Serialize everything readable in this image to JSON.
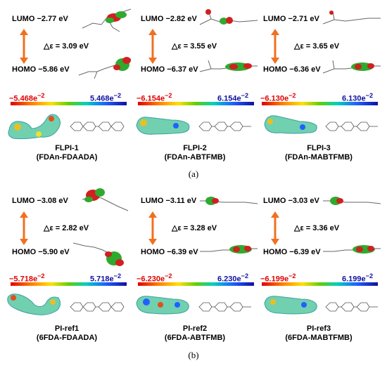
{
  "panels": [
    {
      "tag": "(a)",
      "items": [
        {
          "lumo": "LUMO −2.77 eV",
          "homo": "HOMO −5.86 eV",
          "gap": "△ε = 3.09 eV",
          "cb_min": "−5.468e",
          "cb_max": "5.468e",
          "exp": "−2",
          "name1": "FLPI-1",
          "name2": "(FDAn-FDAADA)"
        },
        {
          "lumo": "LUMO −2.82 eV",
          "homo": "HOMO −6.37 eV",
          "gap": "△ε = 3.55 eV",
          "cb_min": "−6.154e",
          "cb_max": "6.154e",
          "exp": "−2",
          "name1": "FLPI-2",
          "name2": "(FDAn-ABTFMB)"
        },
        {
          "lumo": "LUMO −2.71 eV",
          "homo": "HOMO −6.36 eV",
          "gap": "△ε = 3.65 eV",
          "cb_min": "−6.130e",
          "cb_max": "6.130e",
          "exp": "−2",
          "name1": "FLPI-3",
          "name2": "(FDAn-MABTFMB)"
        }
      ]
    },
    {
      "tag": "(b)",
      "items": [
        {
          "lumo": "LUMO −3.08 eV",
          "homo": "HOMO −5.90 eV",
          "gap": "△ε = 2.82 eV",
          "cb_min": "−5.718e",
          "cb_max": "5.718e",
          "exp": "−2",
          "name1": "PI-ref1",
          "name2": "(6FDA-FDAADA)"
        },
        {
          "lumo": "LUMO −3.11 eV",
          "homo": "HOMO −6.39 eV",
          "gap": "△ε = 3.28 eV",
          "cb_min": "−6.230e",
          "cb_max": "6.230e",
          "exp": "−2",
          "name1": "PI-ref2",
          "name2": "(6FDA-ABTFMB)"
        },
        {
          "lumo": "LUMO −3.03 eV",
          "homo": "HOMO −6.39 eV",
          "gap": "△ε = 3.36 eV",
          "cb_min": "−6.199e",
          "cb_max": "6.199e",
          "exp": "−2",
          "name1": "PI-ref3",
          "name2": "(6FDA-MABTFMB)"
        }
      ]
    }
  ],
  "colors": {
    "arrow": "#f07020",
    "positive_lobe": "#2faa2f",
    "negative_lobe": "#d02020"
  }
}
